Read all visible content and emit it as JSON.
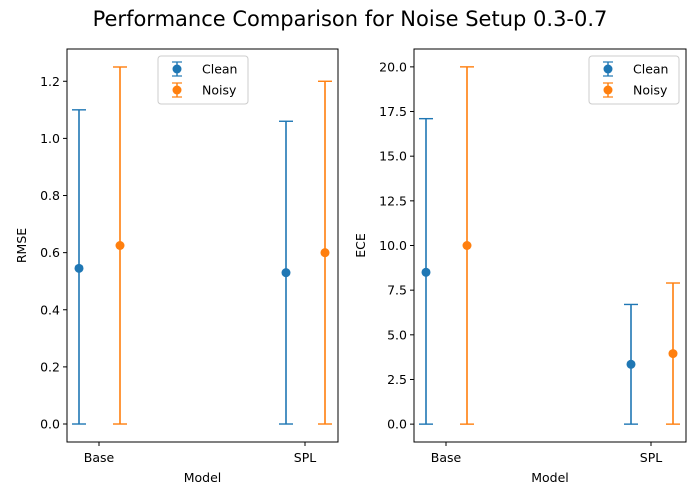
{
  "figure": {
    "title": "Performance Comparison for Noise Setup 0.3-0.7"
  },
  "chart_data": [
    {
      "type": "errorbar",
      "categories": [
        "Base",
        "SPL"
      ],
      "xlabel": "Model",
      "ylabel": "RMSE",
      "ylim": [
        -0.063,
        1.313
      ],
      "yticks": [
        0.0,
        0.2,
        0.4,
        0.6,
        0.8,
        1.0,
        1.2
      ],
      "ytick_labels": [
        "0.0",
        "0.2",
        "0.4",
        "0.6",
        "0.8",
        "1.0",
        "1.2"
      ],
      "legend_position": "upper center",
      "series": [
        {
          "name": "Clean",
          "color": "#1f77b4",
          "values": [
            0.545,
            0.53
          ],
          "lower": [
            0.0,
            0.0
          ],
          "upper": [
            1.1,
            1.06
          ]
        },
        {
          "name": "Noisy",
          "color": "#ff7f0e",
          "values": [
            0.625,
            0.6
          ],
          "lower": [
            0.0,
            0.0
          ],
          "upper": [
            1.25,
            1.2
          ]
        }
      ]
    },
    {
      "type": "errorbar",
      "categories": [
        "Base",
        "SPL"
      ],
      "xlabel": "Model",
      "ylabel": "ECE",
      "ylim": [
        -1.0,
        21.0
      ],
      "yticks": [
        0.0,
        2.5,
        5.0,
        7.5,
        10.0,
        12.5,
        15.0,
        17.5,
        20.0
      ],
      "ytick_labels": [
        "0.0",
        "2.5",
        "5.0",
        "7.5",
        "10.0",
        "12.5",
        "15.0",
        "17.5",
        "20.0"
      ],
      "legend_position": "upper right",
      "series": [
        {
          "name": "Clean",
          "color": "#1f77b4",
          "values": [
            8.5,
            3.35
          ],
          "lower": [
            0.0,
            0.0
          ],
          "upper": [
            17.1,
            6.7
          ]
        },
        {
          "name": "Noisy",
          "color": "#ff7f0e",
          "values": [
            10.0,
            3.95
          ],
          "lower": [
            0.0,
            0.0
          ],
          "upper": [
            20.0,
            7.9
          ]
        }
      ]
    }
  ]
}
